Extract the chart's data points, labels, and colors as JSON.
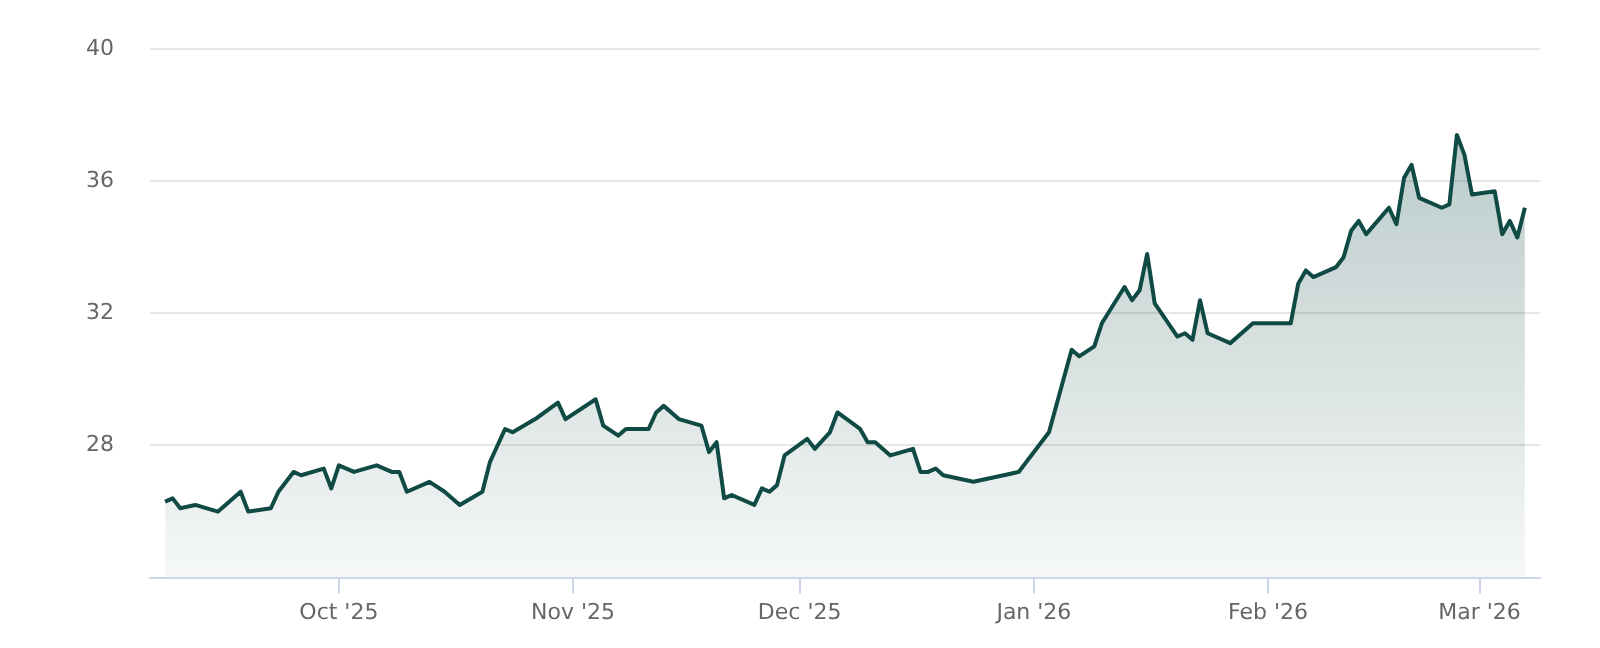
{
  "chart_data": {
    "type": "area",
    "marker": "none",
    "grid": "y",
    "xlim": [
      "2025-09-06",
      "2026-03-09"
    ],
    "ylim": [
      24,
      40
    ],
    "yticks": [
      28,
      32,
      36,
      40
    ],
    "xticks": [
      {
        "value": "2025-10-01",
        "label": "Oct '25"
      },
      {
        "value": "2025-11-01",
        "label": "Nov '25"
      },
      {
        "value": "2025-12-01",
        "label": "Dec '25"
      },
      {
        "value": "2026-01-01",
        "label": "Jan '26"
      },
      {
        "value": "2026-02-01",
        "label": "Feb '26"
      },
      {
        "value": "2026-03-01",
        "label": "Mar '26"
      }
    ],
    "x": [
      "2025-09-08",
      "2025-09-09",
      "2025-09-10",
      "2025-09-12",
      "2025-09-15",
      "2025-09-18",
      "2025-09-19",
      "2025-09-22",
      "2025-09-23",
      "2025-09-25",
      "2025-09-26",
      "2025-09-29",
      "2025-09-30",
      "2025-10-01",
      "2025-10-03",
      "2025-10-06",
      "2025-10-08",
      "2025-10-09",
      "2025-10-10",
      "2025-10-13",
      "2025-10-15",
      "2025-10-17",
      "2025-10-20",
      "2025-10-21",
      "2025-10-23",
      "2025-10-24",
      "2025-10-27",
      "2025-10-30",
      "2025-10-31",
      "2025-11-04",
      "2025-11-05",
      "2025-11-07",
      "2025-11-08",
      "2025-11-11",
      "2025-11-12",
      "2025-11-13",
      "2025-11-15",
      "2025-11-18",
      "2025-11-19",
      "2025-11-20",
      "2025-11-21",
      "2025-11-22",
      "2025-11-25",
      "2025-11-26",
      "2025-11-27",
      "2025-11-28",
      "2025-11-29",
      "2025-12-02",
      "2025-12-03",
      "2025-12-05",
      "2025-12-06",
      "2025-12-09",
      "2025-12-10",
      "2025-12-11",
      "2025-12-13",
      "2025-12-16",
      "2025-12-17",
      "2025-12-18",
      "2025-12-19",
      "2025-12-20",
      "2025-12-24",
      "2025-12-28",
      "2025-12-30",
      "2025-12-31",
      "2026-01-03",
      "2026-01-06",
      "2026-01-07",
      "2026-01-09",
      "2026-01-10",
      "2026-01-13",
      "2026-01-14",
      "2026-01-15",
      "2026-01-16",
      "2026-01-17",
      "2026-01-20",
      "2026-01-21",
      "2026-01-22",
      "2026-01-23",
      "2026-01-24",
      "2026-01-27",
      "2026-01-30",
      "2026-02-04",
      "2026-02-05",
      "2026-02-06",
      "2026-02-07",
      "2026-02-10",
      "2026-02-11",
      "2026-02-12",
      "2026-02-13",
      "2026-02-14",
      "2026-02-17",
      "2026-02-18",
      "2026-02-19",
      "2026-02-20",
      "2026-02-21",
      "2026-02-24",
      "2026-02-25",
      "2026-02-26",
      "2026-02-27",
      "2026-02-28",
      "2026-03-03",
      "2026-03-04",
      "2026-03-05",
      "2026-03-06",
      "2026-03-07"
    ],
    "series": [
      {
        "color": "#0f4a44",
        "values": [
          26.3,
          26.4,
          26.1,
          26.2,
          26.0,
          26.6,
          26.0,
          26.1,
          26.6,
          27.2,
          27.1,
          27.3,
          26.7,
          27.4,
          27.2,
          27.4,
          27.2,
          27.2,
          26.6,
          26.9,
          26.6,
          26.2,
          26.6,
          27.5,
          28.5,
          28.4,
          28.8,
          29.3,
          28.8,
          29.4,
          28.6,
          28.3,
          28.5,
          28.5,
          29.0,
          29.2,
          28.8,
          28.6,
          27.8,
          28.1,
          26.4,
          26.5,
          26.2,
          26.7,
          26.6,
          26.8,
          27.7,
          28.2,
          27.9,
          28.4,
          29.0,
          28.5,
          28.1,
          28.1,
          27.7,
          27.9,
          27.2,
          27.2,
          27.3,
          27.1,
          26.9,
          27.1,
          27.2,
          27.5,
          28.4,
          30.9,
          30.7,
          31.0,
          31.7,
          32.8,
          32.4,
          32.7,
          33.8,
          32.3,
          31.3,
          31.4,
          31.2,
          32.4,
          31.4,
          31.1,
          31.7,
          31.7,
          32.9,
          33.3,
          33.1,
          33.4,
          33.7,
          34.5,
          34.8,
          34.4,
          35.2,
          34.7,
          36.1,
          36.5,
          35.5,
          35.2,
          35.3,
          37.4,
          36.8,
          35.6,
          35.7,
          34.4,
          34.8,
          34.3,
          35.2
        ]
      }
    ]
  }
}
